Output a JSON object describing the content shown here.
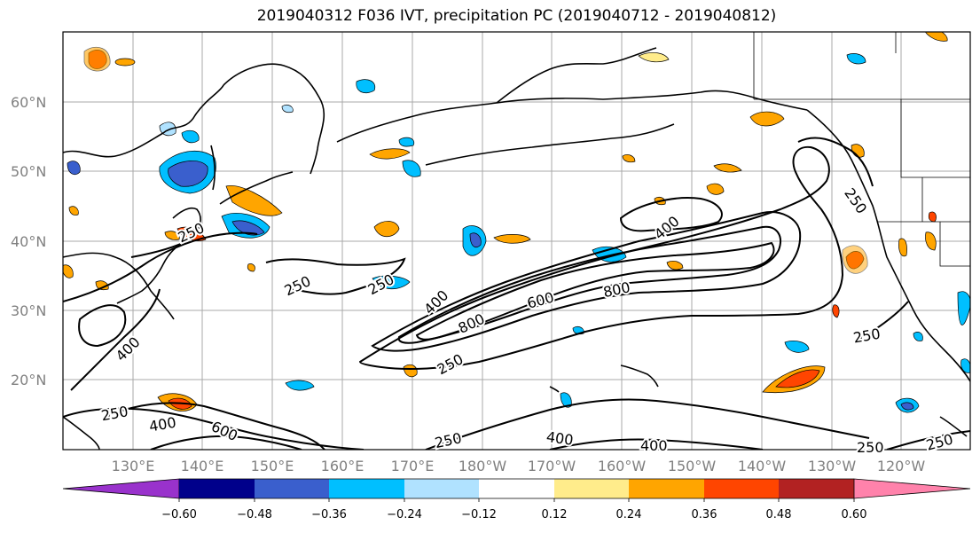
{
  "title": "2019040312 F036 IVT, precipitation PC (2019040712 - 2019040812)",
  "lat_labels": [
    "60°N",
    "50°N",
    "40°N",
    "30°N",
    "20°N"
  ],
  "lon_labels": [
    "130°E",
    "140°E",
    "150°E",
    "160°E",
    "170°E",
    "180°W",
    "170°W",
    "160°W",
    "150°W",
    "140°W",
    "130°W",
    "120°W"
  ],
  "colorbar": {
    "ticks": [
      "−0.60",
      "−0.48",
      "−0.36",
      "−0.24",
      "−0.12",
      "0.12",
      "0.24",
      "0.36",
      "0.48",
      "0.60"
    ],
    "colors": [
      "#9932cc",
      "#00008b",
      "#3a5fcd",
      "#00bfff",
      "#b0e2ff",
      "#ffffff",
      "#ffec8b",
      "#ffa500",
      "#ff4500",
      "#b22222",
      "#ff82ab"
    ]
  },
  "contour_labels": [
    "250",
    "250",
    "250",
    "250",
    "250",
    "250",
    "250",
    "250",
    "250",
    "400",
    "400",
    "400",
    "400",
    "400",
    "400",
    "400",
    "600",
    "600",
    "800",
    "800"
  ]
}
